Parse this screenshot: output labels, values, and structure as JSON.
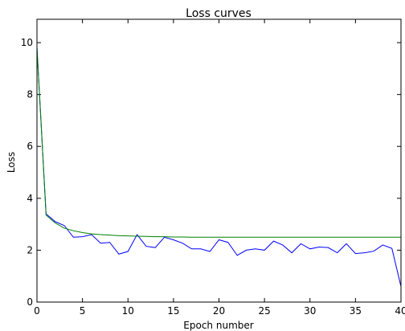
{
  "chart_data": {
    "type": "line",
    "title": "Loss curves",
    "xlabel": "Epoch number",
    "ylabel": "Loss",
    "xlim": [
      0,
      40
    ],
    "ylim": [
      0,
      10.9
    ],
    "x_ticks": [
      "0",
      "5",
      "10",
      "15",
      "20",
      "25",
      "30",
      "35",
      "40"
    ],
    "y_ticks": [
      "0",
      "2",
      "4",
      "6",
      "8",
      "10"
    ],
    "grid": false,
    "x": [
      0,
      1,
      2,
      3,
      4,
      5,
      6,
      7,
      8,
      9,
      10,
      11,
      12,
      13,
      14,
      15,
      16,
      17,
      18,
      19,
      20,
      21,
      22,
      23,
      24,
      25,
      26,
      27,
      28,
      29,
      30,
      31,
      32,
      33,
      34,
      35,
      36,
      37,
      38,
      39,
      40
    ],
    "series": [
      {
        "color": "#0000ff",
        "values": [
          9.8,
          3.4,
          3.1,
          2.95,
          2.5,
          2.52,
          2.6,
          2.27,
          2.3,
          1.85,
          1.95,
          2.6,
          2.15,
          2.1,
          2.5,
          2.4,
          2.27,
          2.05,
          2.05,
          1.95,
          2.4,
          2.3,
          1.8,
          2.0,
          2.05,
          2.0,
          2.35,
          2.2,
          1.9,
          2.25,
          2.05,
          2.12,
          2.1,
          1.9,
          2.25,
          1.87,
          1.9,
          1.96,
          2.2,
          2.07,
          0.6
        ]
      },
      {
        "color": "#008000",
        "values": [
          9.8,
          3.35,
          3.05,
          2.85,
          2.75,
          2.68,
          2.63,
          2.6,
          2.58,
          2.56,
          2.55,
          2.54,
          2.53,
          2.52,
          2.52,
          2.51,
          2.51,
          2.5,
          2.5,
          2.5,
          2.5,
          2.5,
          2.5,
          2.5,
          2.5,
          2.5,
          2.5,
          2.5,
          2.5,
          2.5,
          2.5,
          2.5,
          2.5,
          2.5,
          2.5,
          2.5,
          2.5,
          2.5,
          2.5,
          2.5,
          2.5
        ]
      }
    ]
  }
}
